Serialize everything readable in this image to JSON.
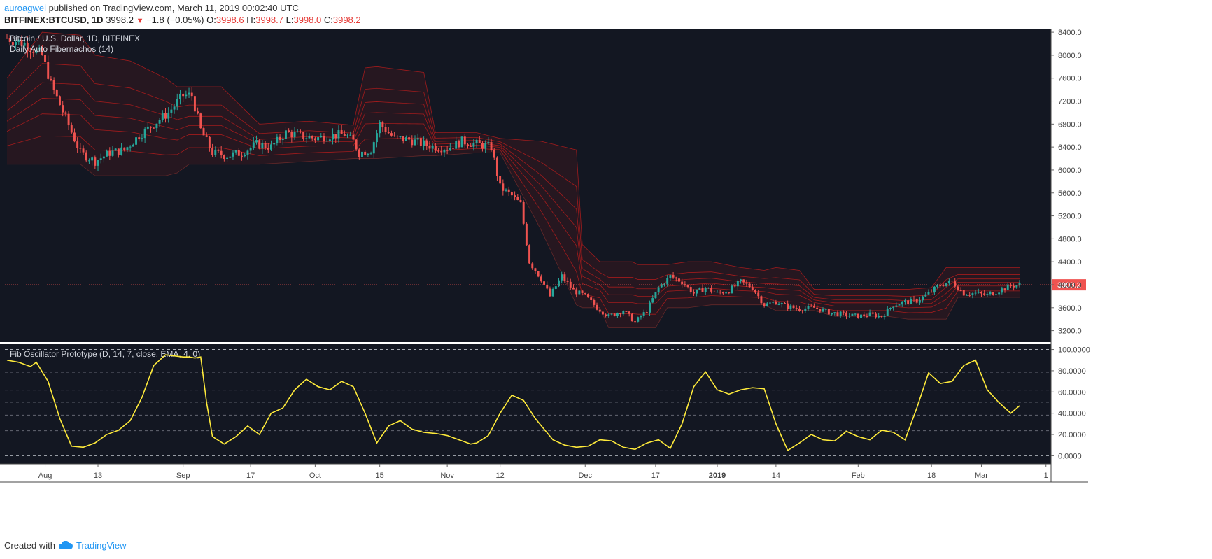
{
  "header": {
    "user": "auroagwei",
    "published_text": "published on TradingView.com, March 11, 2019 00:02:40 UTC",
    "symbol": "BITFINEX:BTCUSD, 1D",
    "last": "3998.2",
    "change": "−1.8 (−0.05%)",
    "ohlc": {
      "o_label": "O:",
      "o": "3998.6",
      "h_label": "H:",
      "h": "3998.7",
      "l_label": "L:",
      "l": "3998.0",
      "c_label": "C:",
      "c": "3998.2"
    }
  },
  "footer": {
    "created_with": "Created with",
    "brand": "TradingView"
  },
  "colors": {
    "bg": "#131722",
    "up": "#26a69a",
    "down": "#ef5350",
    "band": "#b71c1c",
    "osc": "#ffeb3b",
    "grid": "#787b86"
  },
  "chart_data": [
    {
      "type": "candlestick",
      "title": "Bitcoin / U.S. Dollar, 1D, BITFINEX",
      "indicator": "Daily Auto Fibernachos (14)",
      "y_ticks": [
        3200,
        3600,
        4000,
        4400,
        4800,
        5200,
        5600,
        6000,
        6400,
        6800,
        7200,
        7600,
        8000,
        8400
      ],
      "ylim": [
        3000,
        8450
      ],
      "last_price_label": "3998.2",
      "x_ticks": [
        {
          "label": "Aug",
          "i": 13
        },
        {
          "label": "13",
          "i": 31
        },
        {
          "label": "Sep",
          "i": 60
        },
        {
          "label": "17",
          "i": 83
        },
        {
          "label": "Oct",
          "i": 105
        },
        {
          "label": "15",
          "i": 127
        },
        {
          "label": "Nov",
          "i": 150
        },
        {
          "label": "12",
          "i": 168
        },
        {
          "label": "Dec",
          "i": 197
        },
        {
          "label": "17",
          "i": 221
        },
        {
          "label": "2019",
          "i": 242
        },
        {
          "label": "14",
          "i": 262
        },
        {
          "label": "Feb",
          "i": 290
        },
        {
          "label": "18",
          "i": 315
        },
        {
          "label": "Mar",
          "i": 332
        },
        {
          "label": "1",
          "i": 354
        }
      ],
      "close_anchors": [
        [
          0,
          8300
        ],
        [
          6,
          8200
        ],
        [
          12,
          8000
        ],
        [
          15,
          7500
        ],
        [
          20,
          6900
        ],
        [
          25,
          6300
        ],
        [
          30,
          6150
        ],
        [
          35,
          6300
        ],
        [
          40,
          6350
        ],
        [
          45,
          6600
        ],
        [
          50,
          6800
        ],
        [
          55,
          7000
        ],
        [
          60,
          7300
        ],
        [
          63,
          7300
        ],
        [
          66,
          6700
        ],
        [
          70,
          6300
        ],
        [
          75,
          6250
        ],
        [
          80,
          6300
        ],
        [
          85,
          6450
        ],
        [
          90,
          6400
        ],
        [
          95,
          6650
        ],
        [
          100,
          6600
        ],
        [
          105,
          6550
        ],
        [
          110,
          6600
        ],
        [
          115,
          6620
        ],
        [
          118,
          6500
        ],
        [
          120,
          6300
        ],
        [
          124,
          6350
        ],
        [
          127,
          6800
        ],
        [
          132,
          6550
        ],
        [
          137,
          6530
        ],
        [
          142,
          6450
        ],
        [
          146,
          6400
        ],
        [
          150,
          6380
        ],
        [
          155,
          6500
        ],
        [
          160,
          6450
        ],
        [
          165,
          6400
        ],
        [
          168,
          5700
        ],
        [
          172,
          5550
        ],
        [
          175,
          5400
        ],
        [
          178,
          4400
        ],
        [
          182,
          4100
        ],
        [
          185,
          3800
        ],
        [
          189,
          4150
        ],
        [
          193,
          3900
        ],
        [
          197,
          3800
        ],
        [
          201,
          3600
        ],
        [
          205,
          3450
        ],
        [
          210,
          3550
        ],
        [
          214,
          3350
        ],
        [
          218,
          3550
        ],
        [
          222,
          3950
        ],
        [
          226,
          4150
        ],
        [
          230,
          4050
        ],
        [
          234,
          3850
        ],
        [
          238,
          3950
        ],
        [
          242,
          3850
        ],
        [
          246,
          3900
        ],
        [
          250,
          4050
        ],
        [
          254,
          3950
        ],
        [
          258,
          3650
        ],
        [
          262,
          3700
        ],
        [
          266,
          3620
        ],
        [
          270,
          3580
        ],
        [
          275,
          3600
        ],
        [
          280,
          3520
        ],
        [
          285,
          3480
        ],
        [
          290,
          3450
        ],
        [
          294,
          3480
        ],
        [
          298,
          3450
        ],
        [
          302,
          3650
        ],
        [
          306,
          3700
        ],
        [
          310,
          3720
        ],
        [
          314,
          3850
        ],
        [
          318,
          4000
        ],
        [
          322,
          4050
        ],
        [
          326,
          3850
        ],
        [
          330,
          3850
        ],
        [
          334,
          3820
        ],
        [
          338,
          3900
        ],
        [
          342,
          3980
        ],
        [
          345,
          3998
        ]
      ],
      "fib_anchors": [
        [
          0,
          7600,
          6100
        ],
        [
          12,
          8400,
          6100
        ],
        [
          25,
          8350,
          6100
        ],
        [
          30,
          8000,
          5900
        ],
        [
          42,
          7900,
          5900
        ],
        [
          54,
          7600,
          5900
        ],
        [
          58,
          7450,
          5950
        ],
        [
          62,
          7450,
          6100
        ],
        [
          70,
          7450,
          6100
        ],
        [
          73,
          7450,
          6100
        ],
        [
          86,
          6800,
          6100
        ],
        [
          103,
          6850,
          6150
        ],
        [
          118,
          6780,
          6200
        ],
        [
          122,
          7780,
          6200
        ],
        [
          126,
          7800,
          6200
        ],
        [
          142,
          7700,
          6250
        ],
        [
          146,
          6650,
          6250
        ],
        [
          160,
          6650,
          6300
        ],
        [
          168,
          6550,
          6300
        ],
        [
          182,
          6500,
          4950
        ],
        [
          194,
          6350,
          3650
        ],
        [
          196,
          4700,
          3600
        ],
        [
          202,
          4400,
          3600
        ],
        [
          205,
          4400,
          3250
        ],
        [
          213,
          4400,
          3250
        ],
        [
          215,
          4350,
          3250
        ],
        [
          221,
          4350,
          3250
        ],
        [
          225,
          4350,
          3600
        ],
        [
          232,
          4400,
          3600
        ],
        [
          240,
          4400,
          3650
        ],
        [
          250,
          4300,
          3650
        ],
        [
          258,
          4250,
          3650
        ],
        [
          262,
          4300,
          3550
        ],
        [
          270,
          4250,
          3550
        ],
        [
          275,
          3920,
          3550
        ],
        [
          282,
          3920,
          3450
        ],
        [
          300,
          3920,
          3450
        ],
        [
          307,
          3920,
          3400
        ],
        [
          315,
          3950,
          3400
        ],
        [
          320,
          4300,
          3400
        ],
        [
          324,
          4300,
          3780
        ],
        [
          345,
          4300,
          3780
        ]
      ],
      "n_days": 346
    },
    {
      "type": "line",
      "title": "Fib Oscillator Prototype (D, 14, 7, close, EMA, 4, 0)",
      "y_ticks": [
        "0.0000",
        "20.0000",
        "40.0000",
        "60.0000",
        "80.0000",
        "100.0000"
      ],
      "ylim": [
        -5,
        103
      ],
      "levels": [
        0,
        23.6,
        38.2,
        50,
        61.8,
        78.6,
        100
      ],
      "series": [
        {
          "x": [
            0,
            4,
            8,
            10,
            14,
            18,
            22,
            26,
            30,
            34,
            38,
            42,
            46,
            50,
            54,
            57,
            60,
            62,
            64,
            66,
            68,
            70,
            74,
            78,
            82,
            86,
            90,
            94,
            98,
            102,
            106,
            110,
            114,
            118,
            122,
            126,
            130,
            134,
            138,
            142,
            146,
            150,
            154,
            158,
            160,
            164,
            168,
            172,
            176,
            180,
            186,
            190,
            194,
            198,
            202,
            206,
            210,
            214,
            218,
            222,
            226,
            230,
            234,
            238,
            242,
            246,
            250,
            254,
            258,
            262,
            266,
            270,
            274,
            278,
            282,
            286,
            290,
            294,
            298,
            302,
            306,
            310,
            314,
            318,
            322,
            326,
            330,
            334,
            338,
            342,
            345
          ],
          "y": [
            90,
            88,
            84,
            88,
            70,
            35,
            9,
            8,
            12,
            20,
            24,
            33,
            55,
            85,
            95,
            94,
            93,
            93,
            92,
            93,
            50,
            18,
            11,
            18,
            28,
            20,
            40,
            45,
            62,
            72,
            65,
            62,
            70,
            65,
            40,
            12,
            28,
            33,
            25,
            22,
            21,
            19,
            15,
            11,
            12,
            19,
            40,
            57,
            52,
            35,
            15,
            10,
            8,
            9,
            15,
            14,
            8,
            6,
            12,
            15,
            7,
            30,
            65,
            79,
            62,
            58,
            62,
            64,
            63,
            30,
            5,
            12,
            20,
            15,
            14,
            23,
            18,
            15,
            24,
            22,
            15,
            45,
            78,
            68,
            70,
            85,
            90,
            62,
            50,
            40,
            47
          ]
        }
      ]
    }
  ]
}
